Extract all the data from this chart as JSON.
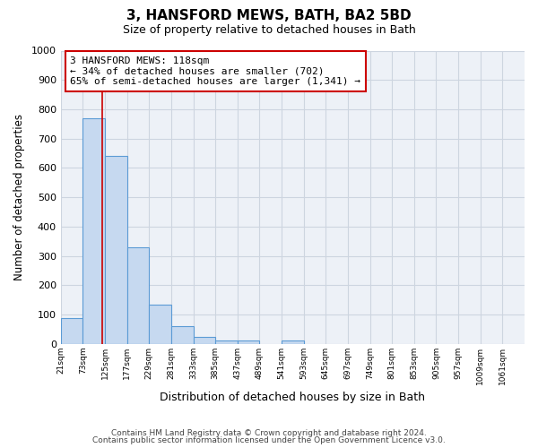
{
  "title": "3, HANSFORD MEWS, BATH, BA2 5BD",
  "subtitle": "Size of property relative to detached houses in Bath",
  "xlabel": "Distribution of detached houses by size in Bath",
  "ylabel": "Number of detached properties",
  "bin_labels": [
    "21sqm",
    "73sqm",
    "125sqm",
    "177sqm",
    "229sqm",
    "281sqm",
    "333sqm",
    "385sqm",
    "437sqm",
    "489sqm",
    "541sqm",
    "593sqm",
    "645sqm",
    "697sqm",
    "749sqm",
    "801sqm",
    "853sqm",
    "905sqm",
    "957sqm",
    "1009sqm",
    "1061sqm"
  ],
  "bin_edges": [
    21,
    73,
    125,
    177,
    229,
    281,
    333,
    385,
    437,
    489,
    541,
    593,
    645,
    697,
    749,
    801,
    853,
    905,
    957,
    1009,
    1061,
    1113
  ],
  "bar_values": [
    88,
    770,
    640,
    330,
    135,
    60,
    25,
    13,
    13,
    0,
    13,
    0,
    0,
    0,
    0,
    0,
    0,
    0,
    0,
    0,
    0
  ],
  "bar_color": "#c6d9f0",
  "bar_edge_color": "#5b9bd5",
  "property_size": 118,
  "vline_color": "#cc0000",
  "annotation_line1": "3 HANSFORD MEWS: 118sqm",
  "annotation_line2": "← 34% of detached houses are smaller (702)",
  "annotation_line3": "65% of semi-detached houses are larger (1,341) →",
  "annotation_box_color": "#ffffff",
  "annotation_box_edge": "#cc0000",
  "ylim": [
    0,
    1000
  ],
  "yticks": [
    0,
    100,
    200,
    300,
    400,
    500,
    600,
    700,
    800,
    900,
    1000
  ],
  "grid_color": "#cdd5e0",
  "bg_color": "#edf1f7",
  "fig_bg_color": "#ffffff",
  "footer_line1": "Contains HM Land Registry data © Crown copyright and database right 2024.",
  "footer_line2": "Contains public sector information licensed under the Open Government Licence v3.0."
}
